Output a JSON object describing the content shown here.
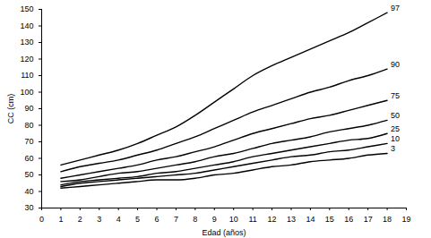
{
  "chart_data": {
    "type": "line",
    "x_label": "Edad (años)",
    "y_label": "CC (cm)",
    "x": [
      1,
      2,
      3,
      4,
      5,
      6,
      7,
      8,
      9,
      10,
      11,
      12,
      13,
      14,
      15,
      16,
      17,
      18
    ],
    "series": [
      {
        "name": "97",
        "color": "#000000",
        "values": [
          56,
          59,
          62,
          65,
          69,
          74,
          79,
          86,
          94,
          102,
          110,
          116,
          121,
          126,
          131,
          136,
          142,
          148
        ]
      },
      {
        "name": "90",
        "color": "#000000",
        "values": [
          52,
          55,
          57,
          59,
          62,
          65,
          69,
          73,
          78,
          83,
          88,
          92,
          96,
          100,
          103,
          107,
          110,
          114
        ]
      },
      {
        "name": "75",
        "color": "#000000",
        "values": [
          48,
          50,
          52,
          54,
          56,
          59,
          61,
          64,
          67,
          71,
          75,
          78,
          81,
          84,
          86,
          89,
          92,
          95
        ]
      },
      {
        "name": "50",
        "color": "#000000",
        "values": [
          46,
          47,
          49,
          51,
          52,
          54,
          56,
          58,
          61,
          63,
          66,
          69,
          71,
          73,
          76,
          78,
          80,
          83
        ]
      },
      {
        "name": "25",
        "color": "#000000",
        "values": [
          44,
          46,
          47,
          48,
          49,
          51,
          52,
          54,
          56,
          58,
          61,
          63,
          65,
          67,
          69,
          71,
          72,
          75
        ]
      },
      {
        "name": "10",
        "color": "#000000",
        "values": [
          43,
          45,
          46,
          47,
          48,
          49,
          50,
          51,
          53,
          55,
          57,
          59,
          61,
          62,
          64,
          65,
          67,
          69
        ]
      },
      {
        "name": "3",
        "color": "#000000",
        "values": [
          42,
          43,
          44,
          45,
          46,
          47,
          47,
          48,
          50,
          51,
          53,
          55,
          56,
          58,
          59,
          60,
          62,
          63
        ]
      }
    ],
    "xlim": [
      0,
      19
    ],
    "xticks": [
      0,
      1,
      2,
      3,
      4,
      5,
      6,
      7,
      8,
      9,
      10,
      11,
      12,
      13,
      14,
      15,
      16,
      17,
      18,
      19
    ],
    "ylim": [
      30,
      150
    ],
    "yticks": [
      30,
      40,
      50,
      60,
      70,
      80,
      90,
      100,
      110,
      120,
      130,
      140,
      150
    ],
    "grid": false
  }
}
